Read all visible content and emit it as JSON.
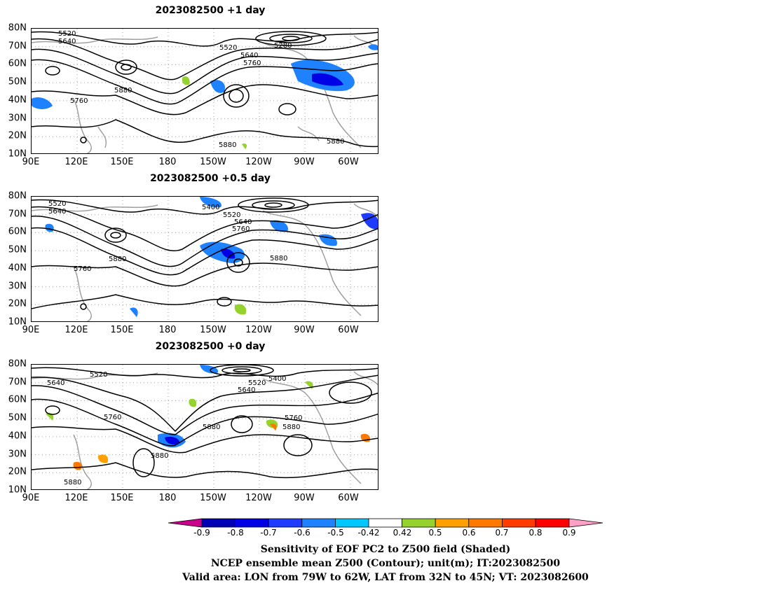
{
  "panels": [
    {
      "title": "2023082500  +1 day",
      "contour_labels": [
        "5520",
        "5640",
        "5520",
        "5640",
        "5760",
        "5280",
        "5880",
        "5760",
        "5880",
        "5880"
      ]
    },
    {
      "title": "2023082500  +0.5 day",
      "contour_labels": [
        "5520",
        "5640",
        "5400",
        "5520",
        "5640",
        "5760",
        "5880",
        "5760",
        "5880"
      ]
    },
    {
      "title": "2023082500  +0 day",
      "contour_labels": [
        "5520",
        "5640",
        "5400",
        "5520",
        "5640",
        "5760",
        "5880",
        "5880",
        "5760",
        "5880",
        "5880"
      ]
    }
  ],
  "lat_labels": [
    "80N",
    "70N",
    "60N",
    "50N",
    "40N",
    "30N",
    "20N",
    "10N"
  ],
  "lon_labels": [
    "90E",
    "120E",
    "150E",
    "180",
    "150W",
    "120W",
    "90W",
    "60W"
  ],
  "colorbar": {
    "ticks": [
      "-0.9",
      "-0.8",
      "-0.7",
      "-0.6",
      "-0.5",
      "-0.42",
      "0.42",
      "0.5",
      "0.6",
      "0.7",
      "0.8",
      "0.9"
    ],
    "colors": [
      "#c8008c",
      "#0000b4",
      "#0000e6",
      "#1e3cff",
      "#1e82ff",
      "#00c8ff",
      "#ffffff",
      "#96d22d",
      "#ffa000",
      "#ff7800",
      "#ff3c00",
      "#ff0000",
      "#ffa0c8"
    ]
  },
  "captions": [
    "Sensitivity of EOF PC2 to Z500 field (Shaded)",
    "NCEP ensemble mean Z500 (Contour); unit(m); IT:2023082500",
    "Valid area: LON from 79W to 62W, LAT from 32N to 45N; VT: 2023082600"
  ],
  "contour_color": "#000000",
  "coast_color": "#a0a0a0",
  "grid_color": "#a0a0a0"
}
